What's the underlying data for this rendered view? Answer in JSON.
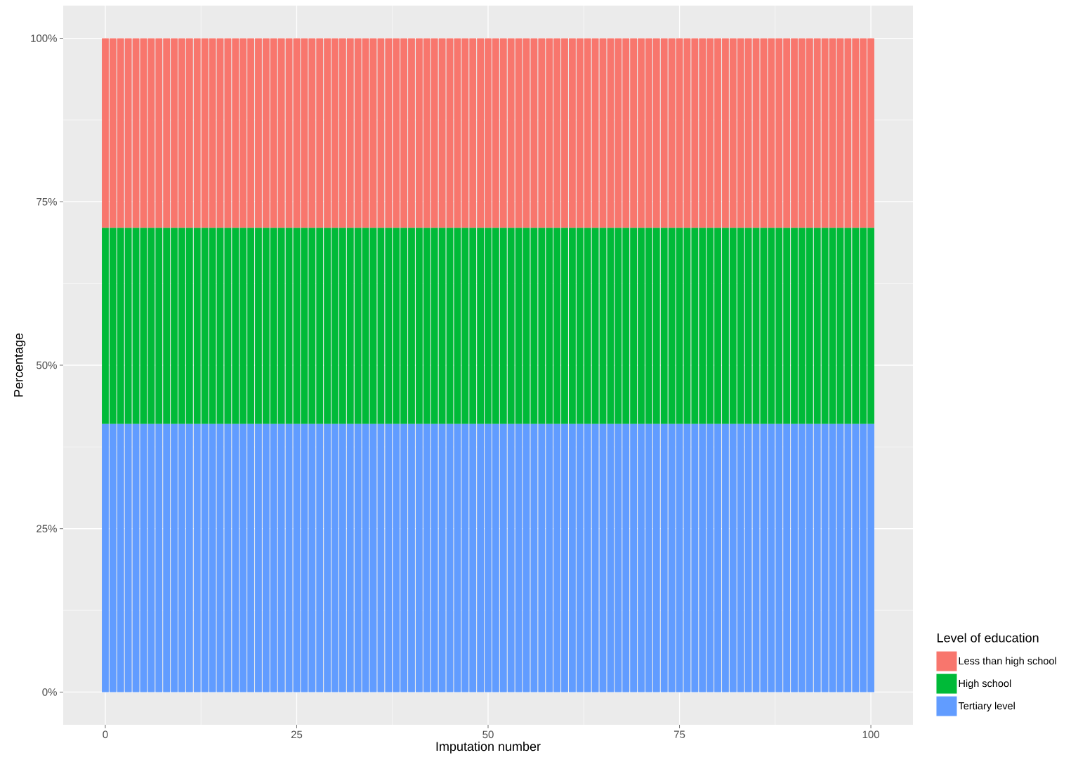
{
  "chart_data": {
    "type": "bar",
    "stacked": true,
    "xlabel": "Imputation number",
    "ylabel": "Percentage",
    "legend_title": "Level of education",
    "x": [
      0,
      1,
      2,
      3,
      4,
      5,
      6,
      7,
      8,
      9,
      10,
      11,
      12,
      13,
      14,
      15,
      16,
      17,
      18,
      19,
      20,
      21,
      22,
      23,
      24,
      25,
      26,
      27,
      28,
      29,
      30,
      31,
      32,
      33,
      34,
      35,
      36,
      37,
      38,
      39,
      40,
      41,
      42,
      43,
      44,
      45,
      46,
      47,
      48,
      49,
      50,
      51,
      52,
      53,
      54,
      55,
      56,
      57,
      58,
      59,
      60,
      61,
      62,
      63,
      64,
      65,
      66,
      67,
      68,
      69,
      70,
      71,
      72,
      73,
      74,
      75,
      76,
      77,
      78,
      79,
      80,
      81,
      82,
      83,
      84,
      85,
      86,
      87,
      88,
      89,
      90,
      91,
      92,
      93,
      94,
      95,
      96,
      97,
      98,
      99,
      100
    ],
    "series": [
      {
        "name": "Tertiary level",
        "color": "#619cff",
        "values": [
          0.41,
          0.41,
          0.41,
          0.41,
          0.41,
          0.41,
          0.41,
          0.41,
          0.41,
          0.41,
          0.41,
          0.41,
          0.41,
          0.41,
          0.41,
          0.41,
          0.41,
          0.41,
          0.41,
          0.41,
          0.41,
          0.41,
          0.41,
          0.41,
          0.41,
          0.41,
          0.41,
          0.41,
          0.41,
          0.41,
          0.41,
          0.41,
          0.41,
          0.41,
          0.41,
          0.41,
          0.41,
          0.41,
          0.41,
          0.41,
          0.41,
          0.41,
          0.41,
          0.41,
          0.41,
          0.41,
          0.41,
          0.41,
          0.41,
          0.41,
          0.41,
          0.41,
          0.41,
          0.41,
          0.41,
          0.41,
          0.41,
          0.41,
          0.41,
          0.41,
          0.41,
          0.41,
          0.41,
          0.41,
          0.41,
          0.41,
          0.41,
          0.41,
          0.41,
          0.41,
          0.41,
          0.41,
          0.41,
          0.41,
          0.41,
          0.41,
          0.41,
          0.41,
          0.41,
          0.41,
          0.41,
          0.41,
          0.41,
          0.41,
          0.41,
          0.41,
          0.41,
          0.41,
          0.41,
          0.41,
          0.41,
          0.41,
          0.41,
          0.41,
          0.41,
          0.41,
          0.41,
          0.41,
          0.41,
          0.41,
          0.41
        ]
      },
      {
        "name": "High school",
        "color": "#00ba38",
        "values": [
          0.3,
          0.3,
          0.3,
          0.3,
          0.3,
          0.3,
          0.3,
          0.3,
          0.3,
          0.3,
          0.3,
          0.3,
          0.3,
          0.3,
          0.3,
          0.3,
          0.3,
          0.3,
          0.3,
          0.3,
          0.3,
          0.3,
          0.3,
          0.3,
          0.3,
          0.3,
          0.3,
          0.3,
          0.3,
          0.3,
          0.3,
          0.3,
          0.3,
          0.3,
          0.3,
          0.3,
          0.3,
          0.3,
          0.3,
          0.3,
          0.3,
          0.3,
          0.3,
          0.3,
          0.3,
          0.3,
          0.3,
          0.3,
          0.3,
          0.3,
          0.3,
          0.3,
          0.3,
          0.3,
          0.3,
          0.3,
          0.3,
          0.3,
          0.3,
          0.3,
          0.3,
          0.3,
          0.3,
          0.3,
          0.3,
          0.3,
          0.3,
          0.3,
          0.3,
          0.3,
          0.3,
          0.3,
          0.3,
          0.3,
          0.3,
          0.3,
          0.3,
          0.3,
          0.3,
          0.3,
          0.3,
          0.3,
          0.3,
          0.3,
          0.3,
          0.3,
          0.3,
          0.3,
          0.3,
          0.3,
          0.3,
          0.3,
          0.3,
          0.3,
          0.3,
          0.3,
          0.3,
          0.3,
          0.3,
          0.3,
          0.3
        ]
      },
      {
        "name": "Less than high school",
        "color": "#f8766d",
        "values": [
          0.29,
          0.29,
          0.29,
          0.29,
          0.29,
          0.29,
          0.29,
          0.29,
          0.29,
          0.29,
          0.29,
          0.29,
          0.29,
          0.29,
          0.29,
          0.29,
          0.29,
          0.29,
          0.29,
          0.29,
          0.29,
          0.29,
          0.29,
          0.29,
          0.29,
          0.29,
          0.29,
          0.29,
          0.29,
          0.29,
          0.29,
          0.29,
          0.29,
          0.29,
          0.29,
          0.29,
          0.29,
          0.29,
          0.29,
          0.29,
          0.29,
          0.29,
          0.29,
          0.29,
          0.29,
          0.29,
          0.29,
          0.29,
          0.29,
          0.29,
          0.29,
          0.29,
          0.29,
          0.29,
          0.29,
          0.29,
          0.29,
          0.29,
          0.29,
          0.29,
          0.29,
          0.29,
          0.29,
          0.29,
          0.29,
          0.29,
          0.29,
          0.29,
          0.29,
          0.29,
          0.29,
          0.29,
          0.29,
          0.29,
          0.29,
          0.29,
          0.29,
          0.29,
          0.29,
          0.29,
          0.29,
          0.29,
          0.29,
          0.29,
          0.29,
          0.29,
          0.29,
          0.29,
          0.29,
          0.29,
          0.29,
          0.29,
          0.29,
          0.29,
          0.29,
          0.29,
          0.29,
          0.29,
          0.29,
          0.29,
          0.29
        ]
      }
    ],
    "xlim": [
      -5.5,
      105.5
    ],
    "ylim": [
      -0.05,
      1.05
    ],
    "xticks": [
      0,
      25,
      50,
      75,
      100
    ],
    "yticks": [
      {
        "value": 0,
        "label": "0%"
      },
      {
        "value": 0.25,
        "label": "25%"
      },
      {
        "value": 0.5,
        "label": "50%"
      },
      {
        "value": 0.75,
        "label": "75%"
      },
      {
        "value": 1,
        "label": "100%"
      }
    ],
    "grid": true,
    "legend": "right"
  }
}
